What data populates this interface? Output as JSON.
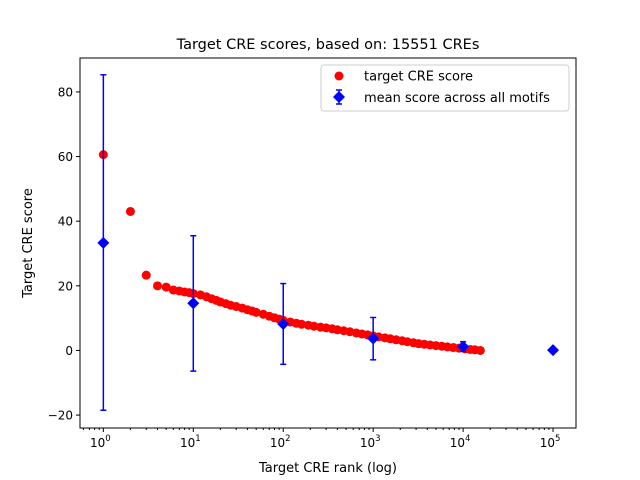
{
  "chart_data": {
    "type": "scatter",
    "title": "Target CRE scores, based on: 15551 CREs",
    "xlabel": "Target CRE rank (log)",
    "ylabel": "Target CRE score",
    "xscale": "log",
    "xlim": [
      0.55,
      180000
    ],
    "ylim": [
      -24,
      90.5
    ],
    "xticks": [
      {
        "v": 1,
        "label": "10",
        "exp": "0"
      },
      {
        "v": 10,
        "label": "10",
        "exp": "1"
      },
      {
        "v": 100,
        "label": "10",
        "exp": "2"
      },
      {
        "v": 1000,
        "label": "10",
        "exp": "3"
      },
      {
        "v": 10000,
        "label": "10",
        "exp": "4"
      },
      {
        "v": 100000,
        "label": "10",
        "exp": "5"
      }
    ],
    "yticks": [
      -20,
      0,
      20,
      40,
      60,
      80
    ],
    "grid": false,
    "legend_position": "top-right",
    "series": [
      {
        "name": "target CRE score",
        "color": "#ff0000",
        "marker": "circle",
        "points": [
          [
            1,
            60.6
          ],
          [
            2,
            43.0
          ],
          [
            3,
            23.3
          ],
          [
            4,
            20.0
          ],
          [
            5,
            19.6
          ],
          [
            6,
            18.7
          ],
          [
            7,
            18.4
          ],
          [
            8,
            18.1
          ],
          [
            9,
            17.9
          ],
          [
            10,
            17.6
          ],
          [
            12,
            17.2
          ],
          [
            14,
            16.6
          ],
          [
            16,
            16.0
          ],
          [
            18,
            15.5
          ],
          [
            20,
            15.0
          ],
          [
            23,
            14.5
          ],
          [
            26,
            14.0
          ],
          [
            30,
            13.6
          ],
          [
            35,
            13.1
          ],
          [
            40,
            12.6
          ],
          [
            45,
            12.2
          ],
          [
            50,
            11.8
          ],
          [
            60,
            11.2
          ],
          [
            70,
            10.6
          ],
          [
            80,
            10.1
          ],
          [
            90,
            9.7
          ],
          [
            100,
            9.3
          ],
          [
            120,
            8.8
          ],
          [
            140,
            8.4
          ],
          [
            160,
            8.1
          ],
          [
            190,
            7.8
          ],
          [
            220,
            7.5
          ],
          [
            260,
            7.2
          ],
          [
            300,
            7.0
          ],
          [
            350,
            6.7
          ],
          [
            400,
            6.4
          ],
          [
            470,
            6.1
          ],
          [
            550,
            5.8
          ],
          [
            650,
            5.4
          ],
          [
            750,
            5.1
          ],
          [
            870,
            4.8
          ],
          [
            1000,
            4.5
          ],
          [
            1150,
            4.2
          ],
          [
            1350,
            3.9
          ],
          [
            1550,
            3.6
          ],
          [
            1800,
            3.3
          ],
          [
            2100,
            3.0
          ],
          [
            2400,
            2.7
          ],
          [
            2800,
            2.4
          ],
          [
            3200,
            2.1
          ],
          [
            3700,
            1.9
          ],
          [
            4300,
            1.7
          ],
          [
            5000,
            1.5
          ],
          [
            5800,
            1.3
          ],
          [
            6700,
            1.1
          ],
          [
            7800,
            0.9
          ],
          [
            9000,
            0.7
          ],
          [
            10500,
            0.5
          ],
          [
            12000,
            0.3
          ],
          [
            13500,
            0.2
          ],
          [
            15551,
            0.0
          ]
        ]
      },
      {
        "name": "mean score across all motifs",
        "color": "#0000ff",
        "marker": "diamond",
        "points": [
          {
            "x": 1,
            "y": 33.3,
            "lo": -18.5,
            "hi": 85.3
          },
          {
            "x": 10,
            "y": 14.6,
            "lo": -6.4,
            "hi": 35.5
          },
          {
            "x": 100,
            "y": 8.2,
            "lo": -4.3,
            "hi": 20.7
          },
          {
            "x": 1000,
            "y": 3.7,
            "lo": -2.9,
            "hi": 10.2
          },
          {
            "x": 10000,
            "y": 1.2,
            "lo": -0.3,
            "hi": 2.7
          },
          {
            "x": 100000,
            "y": 0.1,
            "lo": 0.1,
            "hi": 0.1
          }
        ]
      }
    ]
  }
}
